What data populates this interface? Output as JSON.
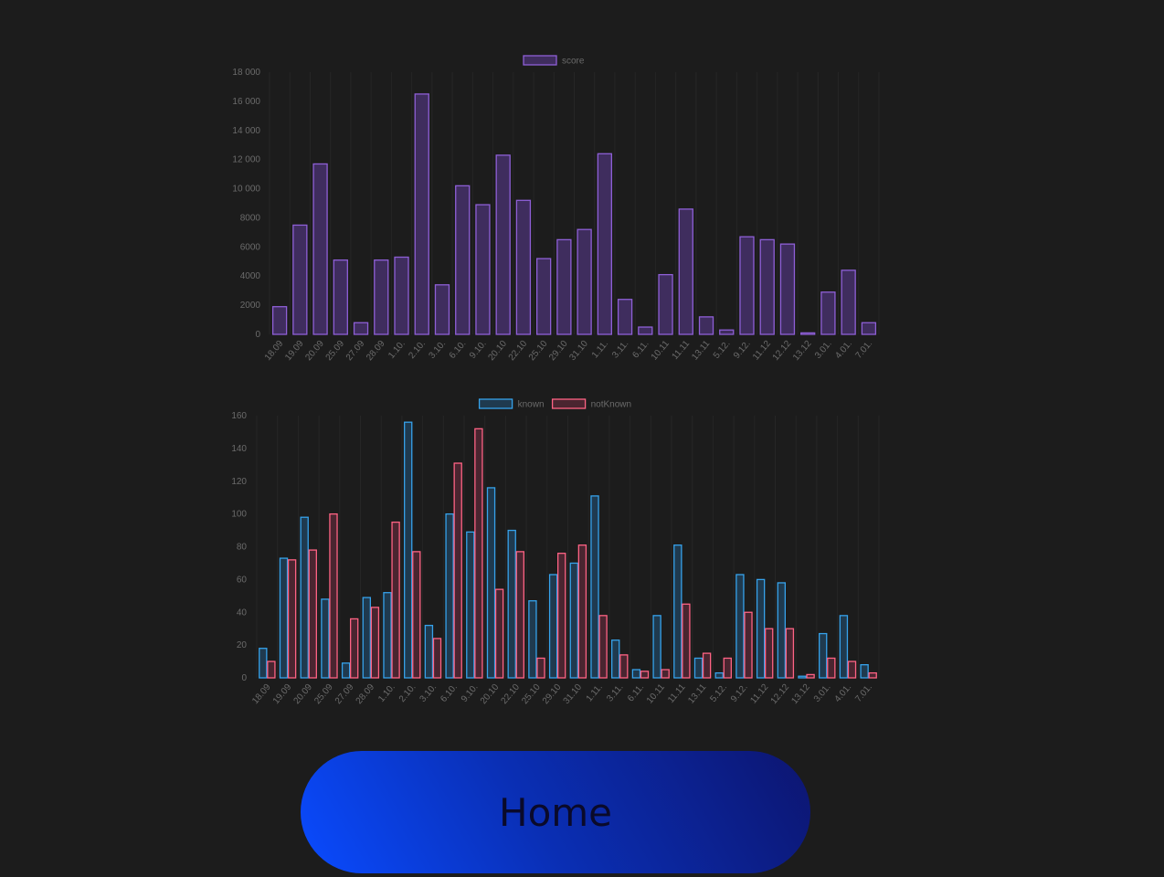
{
  "colors": {
    "background": "#1c1c1c",
    "score_fill": "#3f2d5e",
    "score_stroke": "#8e5fd6",
    "known_fill": "#1f3a4f",
    "known_stroke": "#36a2eb",
    "notknown_fill": "#4a2530",
    "notknown_stroke": "#ff6384",
    "tick_text": "#6b6b6b",
    "grid": "#262626"
  },
  "chart_data": [
    {
      "type": "bar",
      "categories": [
        "18.09",
        "19.09",
        "20.09",
        "25.09",
        "27.09",
        "28.09",
        "1.10.",
        "2.10.",
        "3.10.",
        "6.10.",
        "9.10.",
        "20.10",
        "22.10",
        "25.10",
        "29.10",
        "31.10",
        "1.11.",
        "3.11.",
        "6.11.",
        "10.11",
        "11.11",
        "13.11",
        "5.12.",
        "9.12.",
        "11.12",
        "12.12",
        "13.12",
        "3.01.",
        "4.01.",
        "7.01."
      ],
      "series": [
        {
          "name": "score",
          "values": [
            1900,
            7500,
            11700,
            5100,
            800,
            5100,
            5300,
            16500,
            3400,
            10200,
            8900,
            12300,
            9200,
            5200,
            6500,
            7200,
            12400,
            2400,
            500,
            4100,
            8600,
            1200,
            300,
            6700,
            6500,
            6200,
            100,
            2900,
            4400,
            800
          ]
        }
      ],
      "ylim": [
        0,
        18000
      ],
      "yticks": [
        "0",
        "2000",
        "4000",
        "6000",
        "8000",
        "10 000",
        "12 000",
        "14 000",
        "16 000",
        "18 000"
      ],
      "legend": "top-center",
      "title": "",
      "xlabel": "",
      "ylabel": ""
    },
    {
      "type": "bar",
      "categories": [
        "18.09",
        "19.09",
        "20.09",
        "25.09",
        "27.09",
        "28.09",
        "1.10.",
        "2.10.",
        "3.10.",
        "6.10.",
        "9.10.",
        "20.10",
        "22.10",
        "25.10",
        "29.10",
        "31.10",
        "1.11.",
        "3.11.",
        "6.11.",
        "10.11",
        "11.11",
        "13.11",
        "5.12.",
        "9.12.",
        "11.12",
        "12.12",
        "13.12",
        "3.01.",
        "4.01.",
        "7.01."
      ],
      "series": [
        {
          "name": "known",
          "values": [
            18,
            73,
            98,
            48,
            9,
            49,
            52,
            156,
            32,
            100,
            89,
            116,
            90,
            47,
            63,
            70,
            111,
            23,
            5,
            38,
            81,
            12,
            3,
            63,
            60,
            58,
            1,
            27,
            38,
            8
          ]
        },
        {
          "name": "notKnown",
          "values": [
            10,
            72,
            78,
            100,
            36,
            43,
            95,
            77,
            24,
            131,
            152,
            54,
            77,
            12,
            76,
            81,
            38,
            14,
            4,
            5,
            45,
            15,
            12,
            40,
            30,
            30,
            2,
            12,
            10,
            3
          ]
        }
      ],
      "ylim": [
        0,
        160
      ],
      "yticks": [
        "0",
        "20",
        "40",
        "60",
        "80",
        "100",
        "120",
        "140",
        "160"
      ],
      "legend": "top-center",
      "title": "",
      "xlabel": "",
      "ylabel": ""
    }
  ],
  "home_button": {
    "label": "Home"
  }
}
